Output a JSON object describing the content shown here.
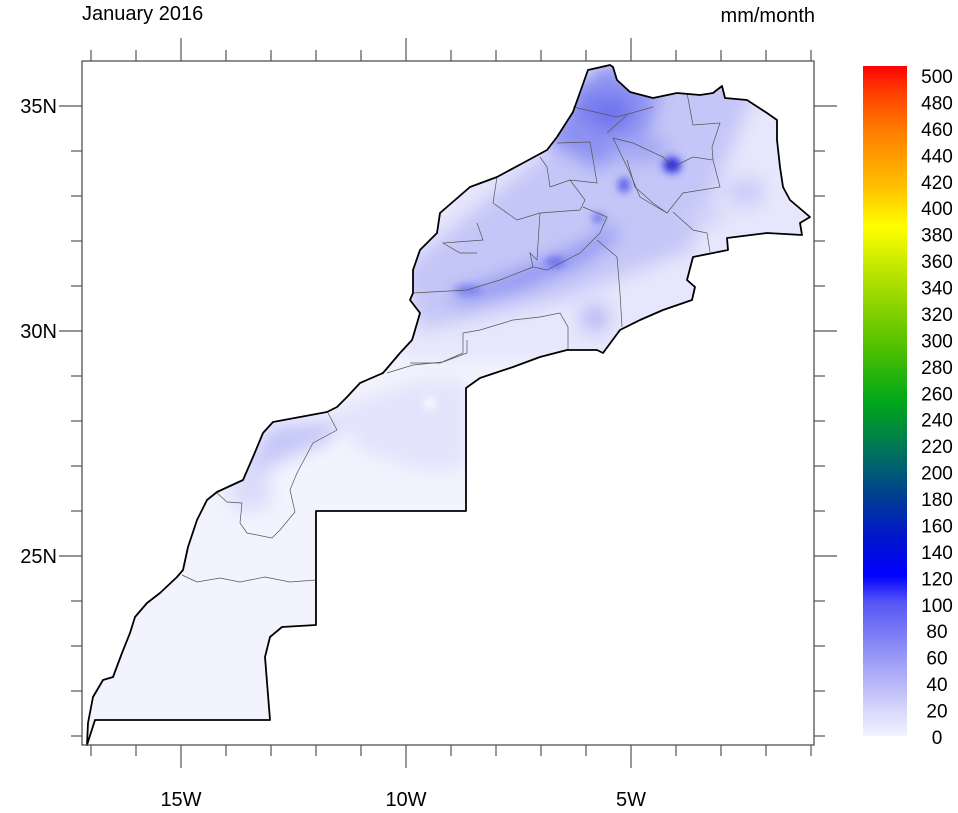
{
  "title": "January 2016",
  "units": "mm/month",
  "map": {
    "region": "Morocco",
    "variable": "precipitation",
    "lon_range": [
      -17.2,
      -0.9
    ],
    "lat_range": [
      20.8,
      36.0
    ],
    "lon_labels": [
      {
        "lon": -15,
        "label": "15W"
      },
      {
        "lon": -10,
        "label": "10W"
      },
      {
        "lon": -5,
        "label": "5W"
      }
    ],
    "lat_labels": [
      {
        "lat": 35,
        "label": "35N"
      },
      {
        "lat": 30,
        "label": "30N"
      },
      {
        "lat": 25,
        "label": "25N"
      }
    ]
  },
  "colorbar": {
    "labels": [
      "0",
      "20",
      "40",
      "60",
      "80",
      "100",
      "120",
      "140",
      "160",
      "180",
      "200",
      "220",
      "240",
      "260",
      "280",
      "300",
      "320",
      "340",
      "360",
      "380",
      "400",
      "420",
      "440",
      "460",
      "480",
      "500"
    ],
    "min": 0,
    "max": 500,
    "stops": [
      {
        "v": 0,
        "c": "#f2f2ff"
      },
      {
        "v": 20,
        "c": "#d6d6fa"
      },
      {
        "v": 60,
        "c": "#9696f6"
      },
      {
        "v": 100,
        "c": "#5555f5"
      },
      {
        "v": 120,
        "c": "#0000ff"
      },
      {
        "v": 150,
        "c": "#0018c8"
      },
      {
        "v": 180,
        "c": "#004090"
      },
      {
        "v": 210,
        "c": "#007060"
      },
      {
        "v": 250,
        "c": "#00a818"
      },
      {
        "v": 290,
        "c": "#50c000"
      },
      {
        "v": 340,
        "c": "#b0e000"
      },
      {
        "v": 380,
        "c": "#ffff00"
      },
      {
        "v": 410,
        "c": "#ffc000"
      },
      {
        "v": 450,
        "c": "#ff8000"
      },
      {
        "v": 480,
        "c": "#ff4000"
      },
      {
        "v": 500,
        "c": "#ff0000"
      }
    ]
  }
}
